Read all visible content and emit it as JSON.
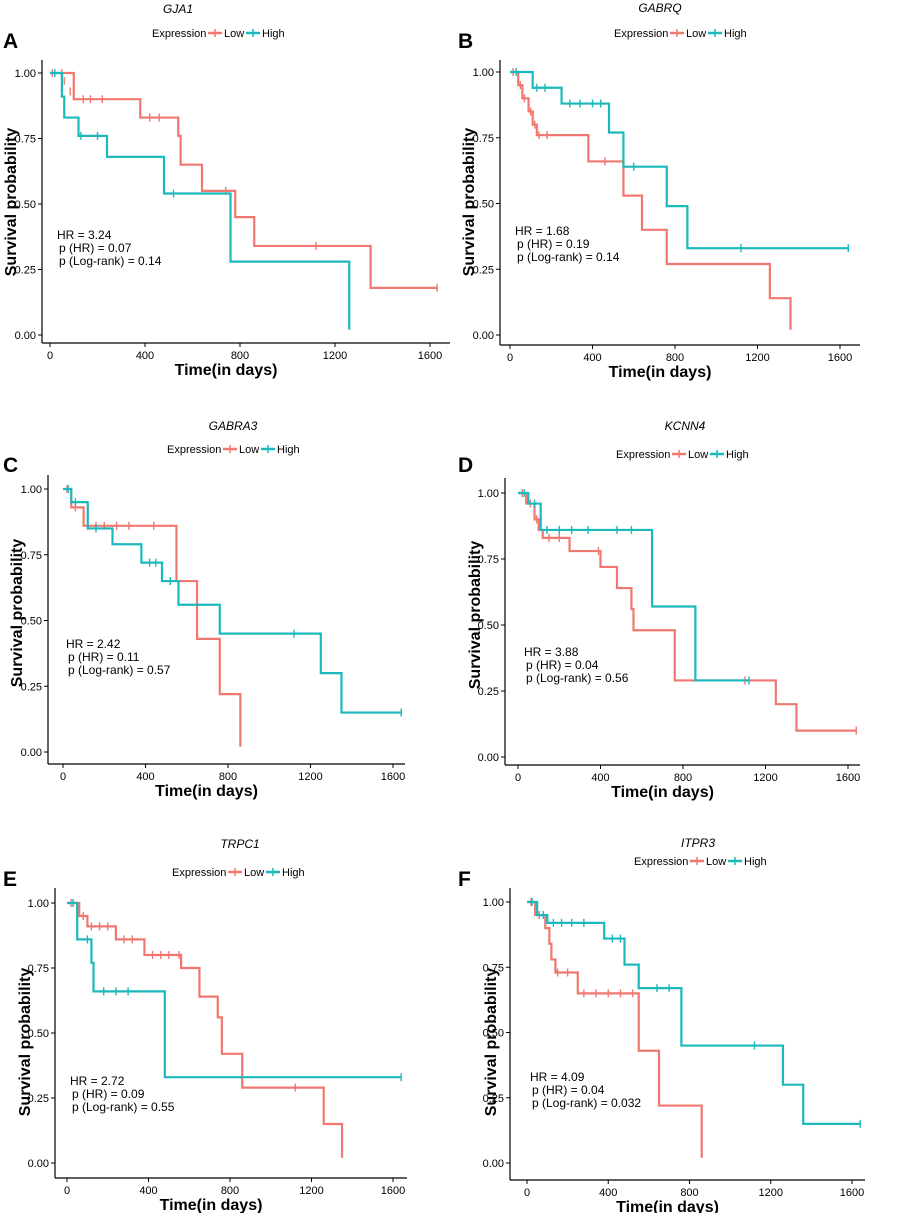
{
  "colors": {
    "low": "#F07870",
    "high": "#1BB8BC",
    "axis": "#000000"
  },
  "common": {
    "legend_title": "Expression",
    "legend_low": "Low",
    "legend_high": "High",
    "xlabel": "Time(in days)",
    "ylabel": "Survival probability",
    "xticks": [
      0,
      400,
      800,
      1200,
      1600
    ],
    "yticks": [
      "0.00",
      "0.25",
      "0.50",
      "0.75",
      "1.00"
    ]
  },
  "chart_data": [
    {
      "type": "line",
      "panel": "A",
      "title": "GJA1",
      "xlabel": "Time(in days)",
      "ylabel": "Survival probability",
      "xlim": [
        0,
        1650
      ],
      "ylim": [
        0,
        1
      ],
      "stats": [
        "HR = 3.24",
        "p (HR) = 0.07",
        "p (Log-rank) = 0.14"
      ],
      "series": [
        {
          "name": "Low",
          "steps": [
            [
              0,
              1
            ],
            [
              100,
              0.9
            ],
            [
              380,
              0.83
            ],
            [
              540,
              0.76
            ],
            [
              550,
              0.65
            ],
            [
              640,
              0.55
            ],
            [
              780,
              0.45
            ],
            [
              860,
              0.34
            ],
            [
              1350,
              0.18
            ],
            [
              1630,
              0.18
            ]
          ],
          "censored": [
            [
              10,
              1
            ],
            [
              50,
              1
            ],
            [
              60,
              0.97
            ],
            [
              85,
              0.93
            ],
            [
              140,
              0.9
            ],
            [
              170,
              0.9
            ],
            [
              220,
              0.9
            ],
            [
              420,
              0.83
            ],
            [
              460,
              0.83
            ],
            [
              740,
              0.55
            ],
            [
              1120,
              0.34
            ],
            [
              1630,
              0.18
            ]
          ]
        },
        {
          "name": "High",
          "steps": [
            [
              0,
              1
            ],
            [
              50,
              0.91
            ],
            [
              60,
              0.83
            ],
            [
              120,
              0.76
            ],
            [
              240,
              0.68
            ],
            [
              480,
              0.54
            ],
            [
              760,
              0.28
            ],
            [
              1260,
              0.02
            ]
          ],
          "censored": [
            [
              20,
              1
            ],
            [
              130,
              0.76
            ],
            [
              200,
              0.76
            ],
            [
              520,
              0.54
            ]
          ]
        }
      ]
    },
    {
      "type": "line",
      "panel": "B",
      "title": "GABRQ",
      "xlabel": "Time(in days)",
      "ylabel": "Survival probability",
      "xlim": [
        0,
        1650
      ],
      "ylim": [
        0,
        1
      ],
      "stats": [
        "HR = 1.68",
        "p (HR) = 0.19",
        "p (Log-rank) = 0.14"
      ],
      "series": [
        {
          "name": "Low",
          "steps": [
            [
              0,
              1
            ],
            [
              40,
              0.95
            ],
            [
              60,
              0.9
            ],
            [
              90,
              0.85
            ],
            [
              110,
              0.8
            ],
            [
              130,
              0.76
            ],
            [
              380,
              0.66
            ],
            [
              550,
              0.53
            ],
            [
              640,
              0.4
            ],
            [
              760,
              0.27
            ],
            [
              1260,
              0.14
            ],
            [
              1360,
              0.02
            ]
          ],
          "censored": [
            [
              15,
              1
            ],
            [
              50,
              0.95
            ],
            [
              70,
              0.9
            ],
            [
              100,
              0.85
            ],
            [
              120,
              0.8
            ],
            [
              140,
              0.76
            ],
            [
              180,
              0.76
            ],
            [
              460,
              0.66
            ]
          ]
        },
        {
          "name": "High",
          "steps": [
            [
              0,
              1
            ],
            [
              110,
              0.94
            ],
            [
              250,
              0.88
            ],
            [
              480,
              0.77
            ],
            [
              550,
              0.64
            ],
            [
              760,
              0.49
            ],
            [
              860,
              0.33
            ],
            [
              1640,
              0.33
            ]
          ],
          "censored": [
            [
              30,
              1
            ],
            [
              130,
              0.94
            ],
            [
              170,
              0.94
            ],
            [
              290,
              0.88
            ],
            [
              340,
              0.88
            ],
            [
              400,
              0.88
            ],
            [
              440,
              0.88
            ],
            [
              600,
              0.64
            ],
            [
              1120,
              0.33
            ],
            [
              1640,
              0.33
            ]
          ]
        }
      ]
    },
    {
      "type": "line",
      "panel": "C",
      "title": "GABRA3",
      "xlabel": "Time(in days)",
      "ylabel": "Survival probability",
      "xlim": [
        0,
        1650
      ],
      "ylim": [
        0,
        1
      ],
      "stats": [
        "HR = 2.42",
        "p (HR) = 0.11",
        "p (Log-rank) = 0.57"
      ],
      "series": [
        {
          "name": "Low",
          "steps": [
            [
              0,
              1
            ],
            [
              40,
              0.93
            ],
            [
              100,
              0.86
            ],
            [
              550,
              0.65
            ],
            [
              650,
              0.43
            ],
            [
              760,
              0.22
            ],
            [
              860,
              0.02
            ]
          ],
          "censored": [
            [
              20,
              1
            ],
            [
              60,
              0.93
            ],
            [
              120,
              0.86
            ],
            [
              160,
              0.86
            ],
            [
              200,
              0.86
            ],
            [
              260,
              0.86
            ],
            [
              320,
              0.86
            ],
            [
              440,
              0.86
            ]
          ]
        },
        {
          "name": "High",
          "steps": [
            [
              0,
              1
            ],
            [
              40,
              0.95
            ],
            [
              120,
              0.85
            ],
            [
              240,
              0.79
            ],
            [
              380,
              0.72
            ],
            [
              480,
              0.65
            ],
            [
              560,
              0.56
            ],
            [
              760,
              0.45
            ],
            [
              1250,
              0.3
            ],
            [
              1350,
              0.15
            ],
            [
              1640,
              0.15
            ]
          ],
          "censored": [
            [
              25,
              1
            ],
            [
              60,
              0.95
            ],
            [
              160,
              0.85
            ],
            [
              420,
              0.72
            ],
            [
              450,
              0.72
            ],
            [
              520,
              0.65
            ],
            [
              1120,
              0.45
            ],
            [
              1640,
              0.15
            ]
          ]
        }
      ]
    },
    {
      "type": "line",
      "panel": "D",
      "title": "KCNN4",
      "xlabel": "Time(in days)",
      "ylabel": "Survival probability",
      "xlim": [
        0,
        1650
      ],
      "ylim": [
        0,
        1
      ],
      "stats": [
        "HR = 3.88",
        "p (HR) = 0.04",
        "p (Log-rank) = 0.56"
      ],
      "series": [
        {
          "name": "Low",
          "steps": [
            [
              0,
              1
            ],
            [
              40,
              0.96
            ],
            [
              80,
              0.9
            ],
            [
              100,
              0.86
            ],
            [
              120,
              0.83
            ],
            [
              250,
              0.78
            ],
            [
              400,
              0.72
            ],
            [
              480,
              0.64
            ],
            [
              550,
              0.56
            ],
            [
              560,
              0.48
            ],
            [
              760,
              0.29
            ],
            [
              1250,
              0.2
            ],
            [
              1350,
              0.1
            ],
            [
              1640,
              0.1
            ]
          ],
          "censored": [
            [
              20,
              1
            ],
            [
              60,
              0.96
            ],
            [
              90,
              0.9
            ],
            [
              150,
              0.83
            ],
            [
              200,
              0.83
            ],
            [
              390,
              0.78
            ],
            [
              1100,
              0.29
            ],
            [
              1640,
              0.1
            ]
          ]
        },
        {
          "name": "High",
          "steps": [
            [
              0,
              1
            ],
            [
              50,
              0.96
            ],
            [
              110,
              0.86
            ],
            [
              650,
              0.57
            ],
            [
              860,
              0.29
            ],
            [
              1120,
              0.29
            ]
          ],
          "censored": [
            [
              30,
              1
            ],
            [
              80,
              0.96
            ],
            [
              140,
              0.86
            ],
            [
              200,
              0.86
            ],
            [
              260,
              0.86
            ],
            [
              340,
              0.86
            ],
            [
              480,
              0.86
            ],
            [
              550,
              0.86
            ],
            [
              1120,
              0.29
            ]
          ]
        }
      ]
    },
    {
      "type": "line",
      "panel": "E",
      "title": "TRPC1",
      "xlabel": "Time(in days)",
      "ylabel": "Survival probability",
      "xlim": [
        0,
        1650
      ],
      "ylim": [
        0,
        1
      ],
      "stats": [
        "HR = 2.72",
        "p (HR) = 0.09",
        "p (Log-rank) = 0.55"
      ],
      "series": [
        {
          "name": "Low",
          "steps": [
            [
              0,
              1
            ],
            [
              60,
              0.95
            ],
            [
              100,
              0.91
            ],
            [
              240,
              0.86
            ],
            [
              380,
              0.8
            ],
            [
              560,
              0.75
            ],
            [
              650,
              0.64
            ],
            [
              740,
              0.56
            ],
            [
              760,
              0.42
            ],
            [
              860,
              0.29
            ],
            [
              1260,
              0.15
            ],
            [
              1350,
              0.02
            ]
          ],
          "censored": [
            [
              20,
              1
            ],
            [
              80,
              0.95
            ],
            [
              120,
              0.91
            ],
            [
              160,
              0.91
            ],
            [
              200,
              0.91
            ],
            [
              280,
              0.86
            ],
            [
              320,
              0.86
            ],
            [
              420,
              0.8
            ],
            [
              460,
              0.8
            ],
            [
              500,
              0.8
            ],
            [
              550,
              0.8
            ],
            [
              1120,
              0.29
            ]
          ]
        },
        {
          "name": "High",
          "steps": [
            [
              0,
              1
            ],
            [
              50,
              0.86
            ],
            [
              120,
              0.77
            ],
            [
              130,
              0.66
            ],
            [
              480,
              0.33
            ],
            [
              1640,
              0.33
            ]
          ],
          "censored": [
            [
              30,
              1
            ],
            [
              100,
              0.86
            ],
            [
              180,
              0.66
            ],
            [
              240,
              0.66
            ],
            [
              300,
              0.66
            ],
            [
              1640,
              0.33
            ]
          ]
        }
      ]
    },
    {
      "type": "line",
      "panel": "F",
      "title": "ITPR3",
      "xlabel": "Time(in days)",
      "ylabel": "Survival probability",
      "xlim": [
        0,
        1650
      ],
      "ylim": [
        0,
        1
      ],
      "stats": [
        "HR = 4.09",
        "p (HR) = 0.04",
        "p (Log-rank) = 0.032"
      ],
      "series": [
        {
          "name": "Low",
          "steps": [
            [
              0,
              1
            ],
            [
              40,
              0.95
            ],
            [
              90,
              0.9
            ],
            [
              110,
              0.84
            ],
            [
              120,
              0.78
            ],
            [
              140,
              0.73
            ],
            [
              250,
              0.65
            ],
            [
              550,
              0.43
            ],
            [
              650,
              0.22
            ],
            [
              860,
              0.02
            ]
          ],
          "censored": [
            [
              20,
              1
            ],
            [
              60,
              0.95
            ],
            [
              150,
              0.73
            ],
            [
              200,
              0.73
            ],
            [
              280,
              0.65
            ],
            [
              340,
              0.65
            ],
            [
              400,
              0.65
            ],
            [
              460,
              0.65
            ],
            [
              520,
              0.65
            ]
          ]
        },
        {
          "name": "High",
          "steps": [
            [
              0,
              1
            ],
            [
              50,
              0.95
            ],
            [
              100,
              0.92
            ],
            [
              380,
              0.86
            ],
            [
              480,
              0.76
            ],
            [
              550,
              0.67
            ],
            [
              760,
              0.45
            ],
            [
              1260,
              0.3
            ],
            [
              1360,
              0.15
            ],
            [
              1640,
              0.15
            ]
          ],
          "censored": [
            [
              25,
              1
            ],
            [
              80,
              0.95
            ],
            [
              130,
              0.92
            ],
            [
              170,
              0.92
            ],
            [
              220,
              0.92
            ],
            [
              280,
              0.92
            ],
            [
              420,
              0.86
            ],
            [
              460,
              0.86
            ],
            [
              640,
              0.67
            ],
            [
              700,
              0.67
            ],
            [
              1120,
              0.45
            ],
            [
              1640,
              0.15
            ]
          ]
        }
      ]
    }
  ]
}
